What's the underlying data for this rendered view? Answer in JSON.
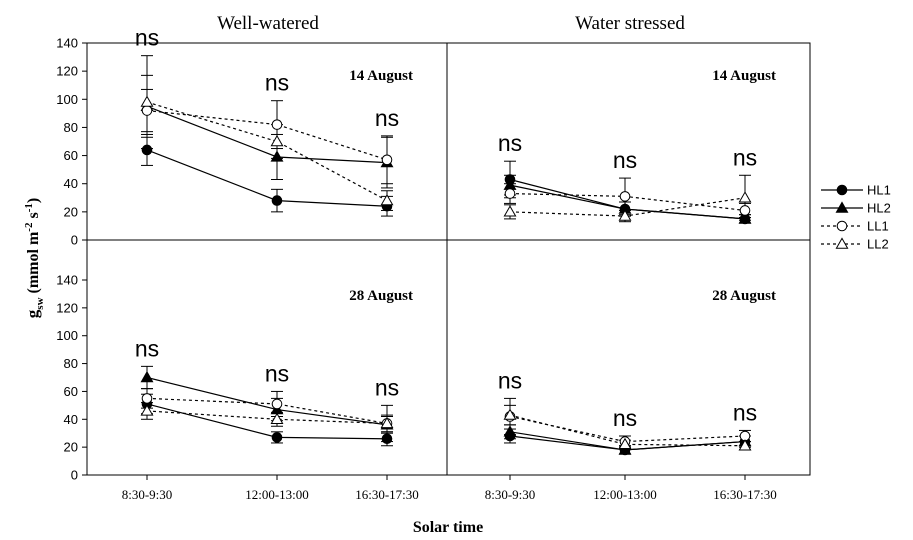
{
  "chart_data": {
    "type": "line",
    "column_titles": [
      "Well-watered",
      "Water stressed"
    ],
    "xlabel": "Solar time",
    "ylabel_main": "g",
    "ylabel_sub": "sw",
    "ylabel_units_pre": " (mmol m",
    "ylabel_exp1": "-2",
    "ylabel_mid": " s",
    "ylabel_exp2": "-1",
    "ylabel_units_post": ")",
    "categories": [
      "8:30-9:30",
      "12:00-13:00",
      "16:30-17:30"
    ],
    "ylim": [
      0,
      140
    ],
    "yticks": [
      0,
      20,
      40,
      60,
      80,
      100,
      120,
      140
    ],
    "legend": {
      "position": "right",
      "entries": [
        {
          "name": "HL1",
          "marker": "circle-filled",
          "dash": "solid"
        },
        {
          "name": "HL2",
          "marker": "triangle-filled",
          "dash": "solid"
        },
        {
          "name": "LL1",
          "marker": "circle-open",
          "dash": "dotted"
        },
        {
          "name": "LL2",
          "marker": "triangle-open",
          "dash": "dotted"
        }
      ]
    },
    "panels": [
      {
        "id": "well-watered-14-aug",
        "row": 0,
        "col": 0,
        "date": "14 August",
        "ns_labels": [
          "ns",
          "ns",
          "ns"
        ],
        "series": [
          {
            "name": "HL1",
            "values": [
              64,
              28,
              24
            ],
            "err": [
              11,
              8,
              7
            ]
          },
          {
            "name": "HL2",
            "values": [
              95,
              59,
              55
            ],
            "err": [
              22,
              16,
              18
            ]
          },
          {
            "name": "LL1",
            "values": [
              92,
              82,
              57
            ],
            "err": [
              15,
              17,
              17
            ]
          },
          {
            "name": "LL2",
            "values": [
              98,
              70,
              28
            ],
            "err": [
              33,
              12,
              7
            ]
          }
        ]
      },
      {
        "id": "water-stressed-14-aug",
        "row": 0,
        "col": 1,
        "date": "14 August",
        "ns_labels": [
          "ns",
          "ns",
          "ns"
        ],
        "series": [
          {
            "name": "HL1",
            "values": [
              43,
              22,
              15
            ],
            "err": [
              13,
              5,
              3
            ]
          },
          {
            "name": "HL2",
            "values": [
              39,
              22,
              15
            ],
            "err": [
              7,
              5,
              3
            ]
          },
          {
            "name": "LL1",
            "values": [
              33,
              31,
              21
            ],
            "err": [
              7,
              13,
              5
            ]
          },
          {
            "name": "LL2",
            "values": [
              20,
              17,
              30
            ],
            "err": [
              5,
              4,
              16
            ]
          }
        ]
      },
      {
        "id": "well-watered-28-aug",
        "row": 1,
        "col": 0,
        "date": "28 August",
        "ns_labels": [
          "ns",
          "ns",
          "ns"
        ],
        "series": [
          {
            "name": "HL1",
            "values": [
              51,
              27,
              26
            ],
            "err": [
              7,
              4,
              5
            ]
          },
          {
            "name": "HL2",
            "values": [
              70,
              47,
              36
            ],
            "err": [
              8,
              8,
              6
            ]
          },
          {
            "name": "LL1",
            "values": [
              55,
              51,
              37
            ],
            "err": [
              7,
              9,
              6
            ]
          },
          {
            "name": "LL2",
            "values": [
              46,
              40,
              37
            ],
            "err": [
              6,
              5,
              13
            ]
          }
        ]
      },
      {
        "id": "water-stressed-28-aug",
        "row": 1,
        "col": 1,
        "date": "28 August",
        "ns_labels": [
          "ns",
          "ns",
          "ns"
        ],
        "series": [
          {
            "name": "HL1",
            "values": [
              28,
              18,
              24
            ],
            "err": [
              5,
              3,
              4
            ]
          },
          {
            "name": "HL2",
            "values": [
              31,
              18,
              24
            ],
            "err": [
              5,
              3,
              4
            ]
          },
          {
            "name": "LL1",
            "values": [
              42,
              24,
              28
            ],
            "err": [
              13,
              4,
              4
            ]
          },
          {
            "name": "LL2",
            "values": [
              43,
              22,
              21
            ],
            "err": [
              7,
              3,
              3
            ]
          }
        ]
      }
    ]
  }
}
